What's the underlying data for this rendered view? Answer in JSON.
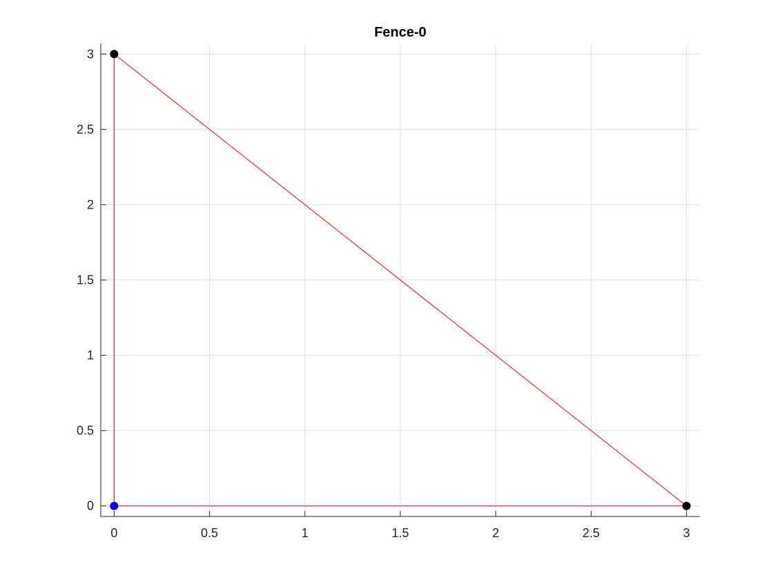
{
  "chart_data": {
    "type": "line",
    "title": "Fence-0",
    "xlabel": "",
    "ylabel": "",
    "xlim": [
      -0.07,
      3.07
    ],
    "ylim": [
      -0.07,
      3.07
    ],
    "xticks": [
      0,
      0.5,
      1,
      1.5,
      2,
      2.5,
      3
    ],
    "xtick_labels": [
      "0",
      "0.5",
      "1",
      "1.5",
      "2",
      "2.5",
      "3"
    ],
    "yticks": [
      0,
      0.5,
      1,
      1.5,
      2,
      2.5,
      3
    ],
    "ytick_labels": [
      "0",
      "0.5",
      "1",
      "1.5",
      "2",
      "2.5",
      "3"
    ],
    "grid": true,
    "series": [
      {
        "style": "line",
        "color": "#ff0000",
        "x": [
          0,
          3,
          0,
          0
        ],
        "y": [
          0,
          0,
          3,
          0
        ]
      },
      {
        "style": "markers",
        "color": "#000000",
        "x": [
          0,
          3
        ],
        "y": [
          3,
          0
        ]
      },
      {
        "style": "markers",
        "color": "#0000ff",
        "x": [
          0
        ],
        "y": [
          0
        ]
      }
    ]
  }
}
